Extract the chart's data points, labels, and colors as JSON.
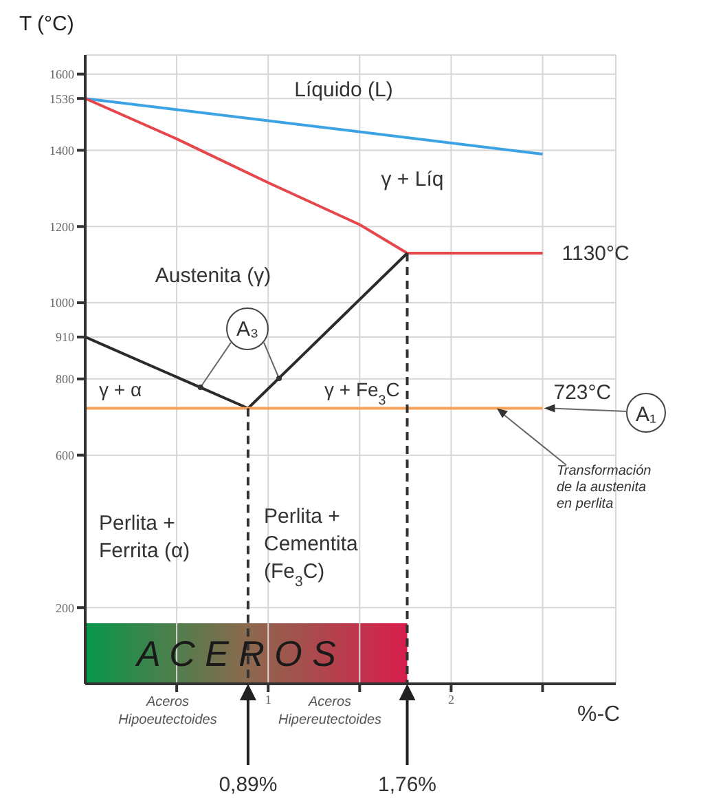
{
  "chart_data": {
    "type": "line",
    "xlabel": "%-C",
    "ylabel": "T (°C)",
    "xlim": [
      0,
      2.9
    ],
    "xticks": [
      {
        "value": 0.5,
        "label": null
      },
      1,
      {
        "value": 1.5,
        "label": null
      },
      2,
      {
        "value": 2.5,
        "label": null
      }
    ],
    "ylim": [
      0,
      1650
    ],
    "yticks": [
      200,
      600,
      800,
      910,
      1000,
      1200,
      1400,
      1536,
      1600
    ],
    "grid": true,
    "marker": "none",
    "line_style": "solid",
    "series": [
      {
        "color": "#3ba3e3",
        "x": [
          0,
          2.5
        ],
        "values": [
          1536,
          1390
        ]
      },
      {
        "color": "#e5474d",
        "x": [
          0,
          0.5,
          1,
          1.5,
          1.76,
          2.5
        ],
        "values": [
          1536,
          1430,
          1315,
          1205,
          1130,
          1130
        ]
      },
      {
        "color": "#2b2b2b",
        "x": [
          0,
          0.89
        ],
        "values": [
          910,
          723
        ]
      },
      {
        "color": "#2b2b2b",
        "x": [
          0.89,
          1.76
        ],
        "values": [
          723,
          1130
        ]
      },
      {
        "color": "#f4a259",
        "x": [
          0,
          2.5
        ],
        "values": [
          723,
          723
        ]
      },
      {
        "color": "#333333",
        "x": [
          0.89,
          0.89
        ],
        "values": [
          723,
          0
        ],
        "line_style": "dashed"
      },
      {
        "color": "#333333",
        "x": [
          1.76,
          1.76
        ],
        "values": [
          1130,
          0
        ],
        "line_style": "dashed"
      }
    ],
    "annotations": [
      "Líquido (L)",
      "γ + Líq",
      "Austenita (γ)",
      "γ + α",
      "γ + Fe$_{3}$C",
      "Perlita +\nFerrita (α)",
      "Perlita +\nCementita\n(Fe$_{3}$C)",
      {
        "text": "1130°C",
        "x": 2.5,
        "y": 1130
      },
      {
        "text": "723°C",
        "x": 2.5,
        "y": 723
      },
      {
        "text": "A₃",
        "x": 0.63,
        "y": 778
      },
      {
        "text": "A₁",
        "x": 2.5,
        "y": 723
      },
      {
        "text": "Transformación\nde la austenita\nen perlita",
        "x": 2.25,
        "y": 723
      },
      "A C E R O S",
      "Aceros\nHipoeutectoides",
      "Aceros\nHipereutectoides",
      "0,89%",
      "1,76%"
    ]
  }
}
